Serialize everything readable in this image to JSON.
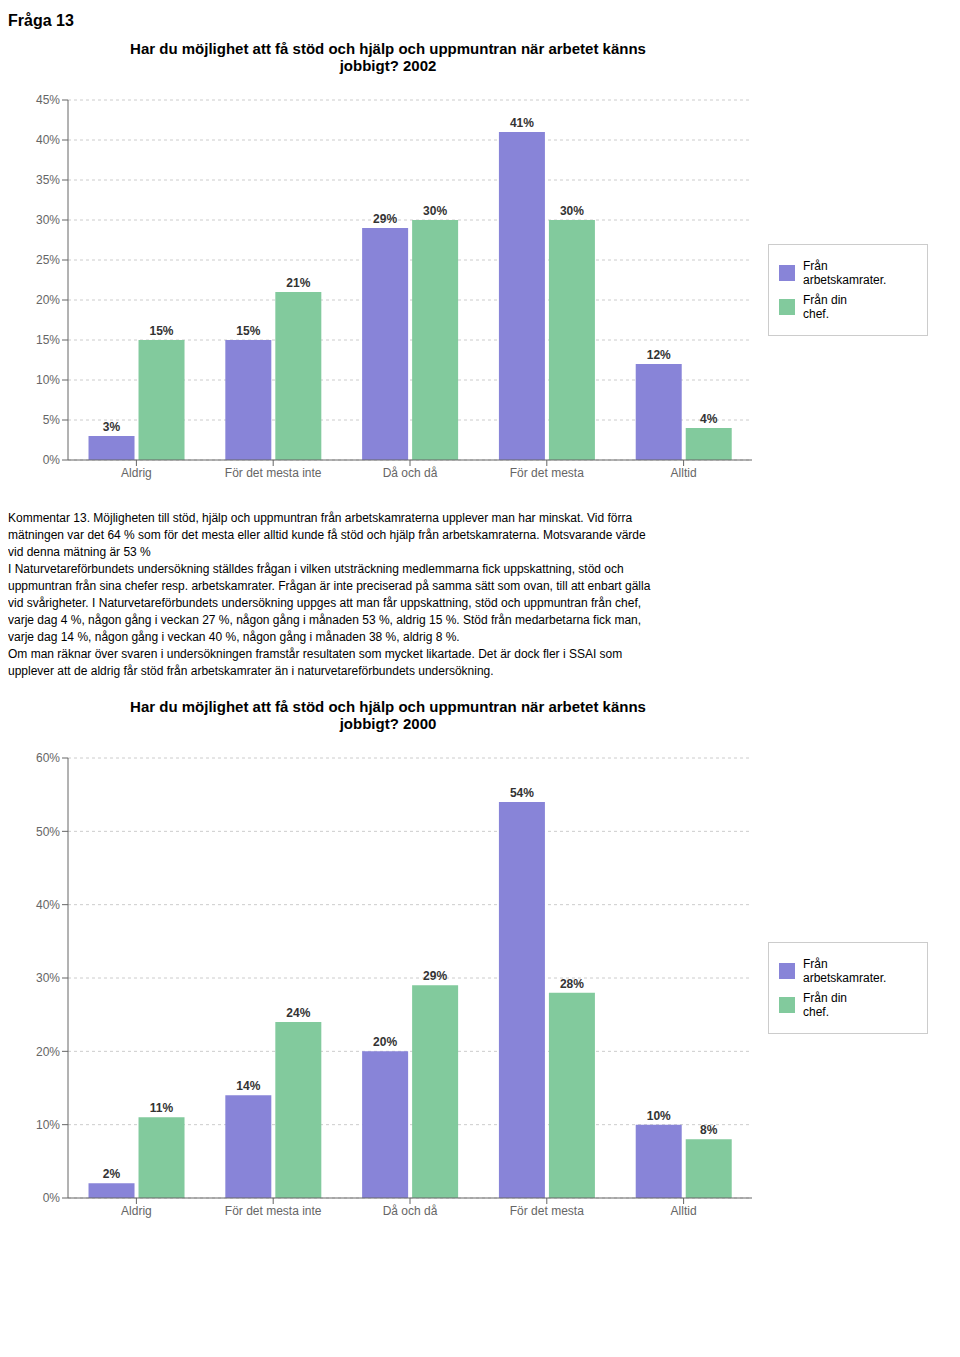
{
  "title": "Fråga 13",
  "annotations": [
    "Kommentar 13. Möjligheten till stöd, hjälp och uppmuntran från arbetskamraterna upplever man har minskat. Vid förra",
    "mätningen var det 64 % som för det mesta eller alltid kunde få stöd och hjälp från arbetskamraterna. Motsvarande värde",
    "vid denna mätning är 53 %",
    "I Naturvetareförbundets undersökning ställdes frågan i vilken utsträckning medlemmarna fick uppskattning, stöd och",
    "uppmuntran från sina chefer resp. arbetskamrater. Frågan är inte preciserad på samma sätt som ovan, till att enbart gälla",
    "vid svårigheter. I Naturvetareförbundets undersökning uppges att man får uppskattning, stöd och uppmuntran från chef,",
    "varje dag 4 %, någon gång i veckan 27 %, någon gång i månaden 53 %, aldrig 15 %. Stöd från medarbetarna fick man,",
    "varje dag 14 %, någon gång i veckan 40 %, någon gång i månaden 38 %, aldrig 8 %.",
    "Om man räknar över svaren i undersökningen framstår resultaten som mycket likartade. Det är dock fler i SSAI som",
    "upplever att de aldrig får stöd från arbetskamrater än i naturvetareförbundets undersökning."
  ],
  "chart_data": [
    {
      "type": "bar",
      "title": "Har du möjlighet att få stöd och hjälp och uppmuntran när arbetet känns\njobbigt? 2002",
      "categories": [
        "Aldrig",
        "För det mesta inte",
        "Då och då",
        "För det mesta",
        "Alltid"
      ],
      "series": [
        {
          "name": "Från\narbetskamrater.",
          "color": "#8884d8",
          "values": [
            3,
            15,
            29,
            41,
            12
          ],
          "value_labels": [
            "3%",
            "15%",
            "29%",
            "41%",
            "12%"
          ]
        },
        {
          "name": "Från din\nchef.",
          "color": "#82ca9d",
          "values": [
            15,
            21,
            30,
            30,
            4
          ],
          "value_labels": [
            "15%",
            "21%",
            "30%",
            "30%",
            "4%"
          ]
        }
      ],
      "ylim": [
        0,
        45
      ],
      "yticks": [
        {
          "value": 0,
          "label": "0%"
        },
        {
          "value": 5,
          "label": "5%"
        },
        {
          "value": 10,
          "label": "10%"
        },
        {
          "value": 15,
          "label": "15%"
        },
        {
          "value": 20,
          "label": "20%"
        },
        {
          "value": 25,
          "label": "25%"
        },
        {
          "value": 30,
          "label": "30%"
        },
        {
          "value": 35,
          "label": "35%"
        },
        {
          "value": 40,
          "label": "40%"
        },
        {
          "value": 45,
          "label": "45%"
        }
      ],
      "grid": true,
      "legend": "right",
      "data_labels": true
    },
    {
      "type": "bar",
      "title": "Har du möjlighet att få stöd och hjälp och uppmuntran när arbetet känns\njobbigt? 2000",
      "categories": [
        "Aldrig",
        "För det mesta inte",
        "Då och då",
        "För det mesta",
        "Alltid"
      ],
      "series": [
        {
          "name": "Från\narbetskamrater.",
          "color": "#8884d8",
          "values": [
            2,
            14,
            20,
            54,
            10
          ],
          "value_labels": [
            "2%",
            "14%",
            "20%",
            "54%",
            "10%"
          ]
        },
        {
          "name": "Från din\nchef.",
          "color": "#82ca9d",
          "values": [
            11,
            24,
            29,
            28,
            8
          ],
          "value_labels": [
            "11%",
            "24%",
            "29%",
            "28%",
            "8%"
          ]
        }
      ],
      "ylim": [
        0,
        60
      ],
      "yticks": [
        {
          "value": 0,
          "label": "0%"
        },
        {
          "value": 10,
          "label": "10%"
        },
        {
          "value": 20,
          "label": "20%"
        },
        {
          "value": 30,
          "label": "30%"
        },
        {
          "value": 40,
          "label": "40%"
        },
        {
          "value": 50,
          "label": "50%"
        },
        {
          "value": 60,
          "label": "60%"
        }
      ],
      "grid": true,
      "legend": "right",
      "data_labels": true
    }
  ]
}
